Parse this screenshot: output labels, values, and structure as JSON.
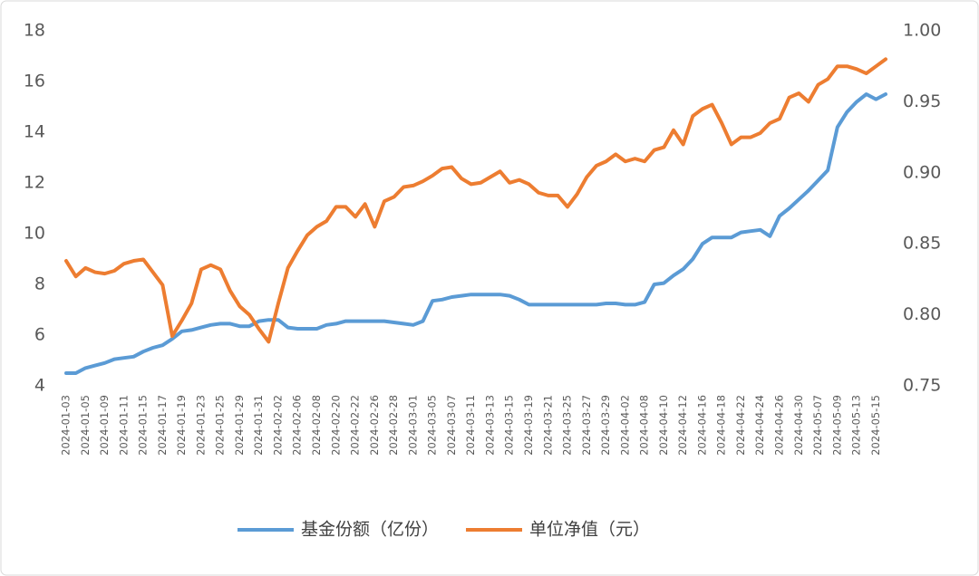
{
  "chart_data": {
    "type": "line",
    "categories": [
      "2024-01-03",
      null,
      "2024-01-05",
      null,
      "2024-01-09",
      null,
      "2024-01-11",
      null,
      "2024-01-15",
      null,
      "2024-01-17",
      null,
      "2024-01-19",
      null,
      "2024-01-23",
      null,
      "2024-01-25",
      null,
      "2024-01-29",
      null,
      "2024-01-31",
      null,
      "2024-02-02",
      null,
      "2024-02-06",
      null,
      "2024-02-08",
      null,
      "2024-02-20",
      null,
      "2024-02-22",
      null,
      "2024-02-26",
      null,
      "2024-02-28",
      null,
      "2024-03-01",
      null,
      "2024-03-05",
      null,
      "2024-03-07",
      null,
      "2024-03-11",
      null,
      "2024-03-13",
      null,
      "2024-03-15",
      null,
      "2024-03-19",
      null,
      "2024-03-21",
      null,
      "2024-03-25",
      null,
      "2024-03-27",
      null,
      "2024-03-29",
      null,
      "2024-04-02",
      null,
      "2024-04-08",
      null,
      "2024-04-10",
      null,
      "2024-04-12",
      null,
      "2024-04-16",
      null,
      "2024-04-18",
      null,
      "2024-04-22",
      null,
      "2024-04-24",
      null,
      "2024-04-26",
      null,
      "2024-04-30",
      null,
      "2024-05-07",
      null,
      "2024-05-09",
      null,
      "2024-05-13",
      null,
      "2024-05-15",
      null
    ],
    "series": [
      {
        "name": "基金份额（亿份）",
        "color": "#5b9bd5",
        "axis": "y",
        "values": [
          4.5,
          4.5,
          4.7,
          4.8,
          4.9,
          5.05,
          5.1,
          5.15,
          5.35,
          5.5,
          5.6,
          5.85,
          6.15,
          6.2,
          6.3,
          6.4,
          6.45,
          6.45,
          6.35,
          6.35,
          6.55,
          6.6,
          6.6,
          6.3,
          6.25,
          6.25,
          6.25,
          6.4,
          6.45,
          6.55,
          6.55,
          6.55,
          6.55,
          6.55,
          6.5,
          6.45,
          6.4,
          6.55,
          7.35,
          7.4,
          7.5,
          7.55,
          7.6,
          7.6,
          7.6,
          7.6,
          7.55,
          7.4,
          7.2,
          7.2,
          7.2,
          7.2,
          7.2,
          7.2,
          7.2,
          7.2,
          7.25,
          7.25,
          7.2,
          7.2,
          7.3,
          8.0,
          8.05,
          8.35,
          8.6,
          9.0,
          9.6,
          9.85,
          9.85,
          9.85,
          10.05,
          10.1,
          10.15,
          9.9,
          10.7,
          11.0,
          11.35,
          11.7,
          12.1,
          12.5,
          14.2,
          14.8,
          15.2,
          15.5,
          15.3,
          15.5
        ]
      },
      {
        "name": "单位净值（元）",
        "color": "#ed7d31",
        "axis": "y2",
        "values": [
          0.838,
          0.827,
          0.833,
          0.83,
          0.829,
          0.831,
          0.836,
          0.838,
          0.839,
          0.83,
          0.821,
          0.785,
          0.796,
          0.808,
          0.832,
          0.835,
          0.832,
          0.817,
          0.806,
          0.8,
          0.79,
          0.781,
          0.808,
          0.833,
          0.845,
          0.856,
          0.862,
          0.866,
          0.876,
          0.876,
          0.869,
          0.878,
          0.862,
          0.88,
          0.883,
          0.89,
          0.891,
          0.894,
          0.898,
          0.903,
          0.904,
          0.896,
          0.892,
          0.893,
          0.897,
          0.901,
          0.893,
          0.895,
          0.892,
          0.886,
          0.884,
          0.884,
          0.876,
          0.885,
          0.897,
          0.905,
          0.908,
          0.913,
          0.908,
          0.91,
          0.908,
          0.916,
          0.918,
          0.93,
          0.92,
          0.94,
          0.945,
          0.948,
          0.935,
          0.92,
          0.925,
          0.925,
          0.928,
          0.935,
          0.938,
          0.953,
          0.956,
          0.95,
          0.962,
          0.966,
          0.975,
          0.975,
          0.973,
          0.97,
          0.975,
          0.98
        ]
      }
    ],
    "ylim": [
      4,
      18
    ],
    "yticks": [
      4,
      6,
      8,
      10,
      12,
      14,
      16,
      18
    ],
    "y2lim": [
      0.75,
      1.0
    ],
    "y2ticks": [
      0.75,
      {
        "value": 0.8,
        "label": "0.80"
      },
      0.85,
      {
        "value": 0.9,
        "label": "0.90"
      },
      0.95,
      {
        "value": 1.0,
        "label": "1.00"
      }
    ],
    "grid": false,
    "legend": "bottom"
  }
}
